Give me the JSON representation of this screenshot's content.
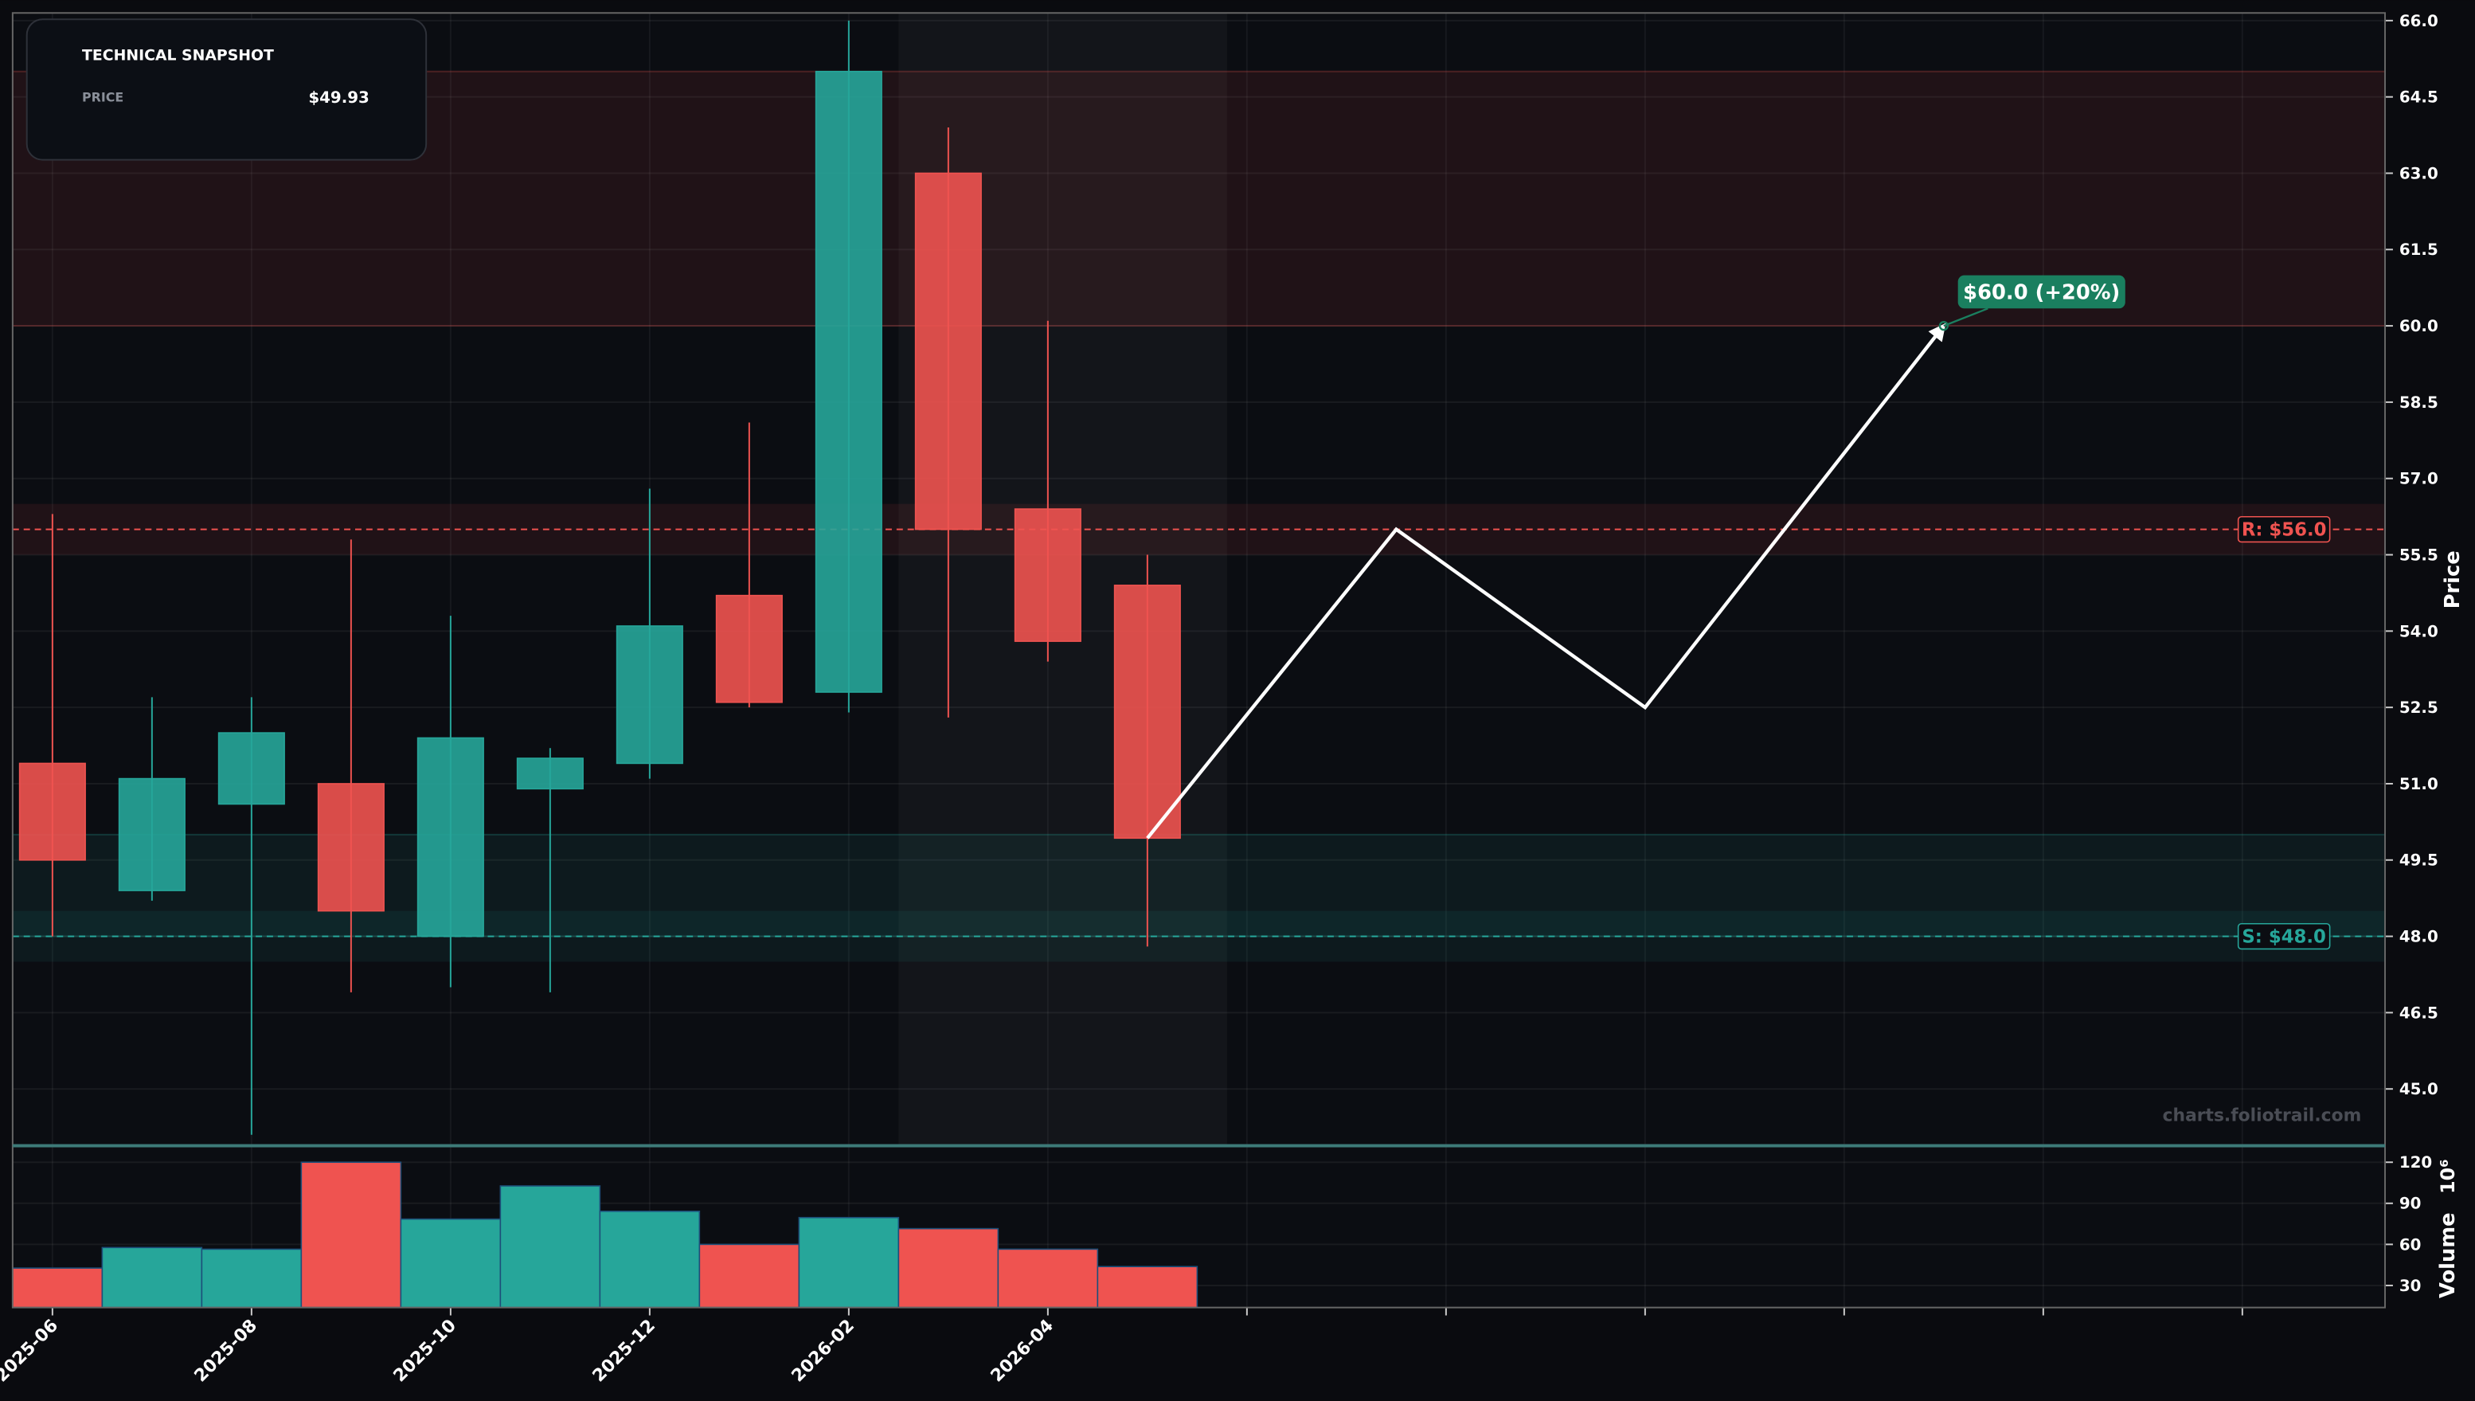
{
  "snapshot": {
    "title": "TECHNICAL SNAPSHOT",
    "price_label": "PRICE",
    "price": "$49.93"
  },
  "chart_data": [
    {
      "type": "candlestick",
      "y_label": "Price",
      "x": [
        "2025-06",
        "2025-07",
        "2025-08",
        "2025-09",
        "2025-10",
        "2025-11",
        "2025-12",
        "2026-01",
        "2026-02",
        "2026-03",
        "2026-04",
        "2026-05"
      ],
      "open": [
        51.4,
        48.9,
        50.6,
        51.0,
        48.0,
        50.9,
        51.4,
        54.7,
        52.8,
        63.0,
        56.4,
        54.9
      ],
      "high": [
        56.3,
        52.7,
        52.7,
        55.8,
        54.3,
        51.7,
        56.8,
        58.1,
        66.0,
        63.9,
        60.1,
        55.5
      ],
      "low": [
        48.0,
        48.7,
        44.1,
        46.9,
        47.0,
        46.9,
        51.1,
        52.5,
        52.4,
        52.3,
        53.4,
        47.8
      ],
      "close": [
        49.5,
        51.1,
        52.0,
        48.5,
        51.9,
        51.5,
        54.1,
        52.6,
        65.0,
        56.0,
        53.8,
        49.93
      ],
      "up_color": "#26a69a",
      "down_color": "#ef5350",
      "xlim": [
        "2025-05-19",
        "2027-05-14"
      ],
      "xticks": [
        "2025-06",
        "2025-08",
        "2025-10",
        "2025-12",
        "2026-02",
        "2026-04",
        {
          "value": "2026-06",
          "label": null
        },
        {
          "value": "2026-08",
          "label": null
        },
        {
          "value": "2026-10",
          "label": null
        },
        {
          "value": "2026-12",
          "label": null
        },
        {
          "value": "2027-02",
          "label": null
        },
        {
          "value": "2027-04",
          "label": null
        }
      ],
      "ylim": [
        43.9,
        66.15
      ],
      "yticks": [
        {
          "value": 45,
          "label": "45.0"
        },
        46.5,
        {
          "value": 48,
          "label": "48.0"
        },
        49.5,
        {
          "value": 51,
          "label": "51.0"
        },
        52.5,
        {
          "value": 54,
          "label": "54.0"
        },
        55.5,
        {
          "value": 57,
          "label": "57.0"
        },
        58.5,
        {
          "value": 60,
          "label": "60.0"
        },
        61.5,
        {
          "value": 63,
          "label": "63.0"
        },
        64.5,
        {
          "value": 66,
          "label": "66.0"
        }
      ],
      "grid": true,
      "zones": [
        {
          "from": 60,
          "to": 65,
          "color": "#ef5350"
        },
        {
          "from": 48,
          "to": 50,
          "color": "#26a69a"
        }
      ],
      "levels": [
        {
          "value": 56,
          "label": "R: $56.0",
          "color": "#ef5350",
          "band": 0.5
        },
        {
          "value": 48,
          "label": "S: $48.0",
          "color": "#26a69a",
          "band": 0.5
        }
      ],
      "highlight": [
        "2026-02-16",
        "2026-05-25"
      ],
      "projection": {
        "x": [
          "2026-05",
          "2026-07-16",
          "2026-10",
          "2027-01"
        ],
        "values": [
          49.93,
          56.0,
          52.5,
          60.0
        ],
        "color": "#ffffff"
      },
      "target_label": "$60.0 (+20%)",
      "target_color": "#1a7f5f",
      "watermark": "charts.foliotrail.com"
    },
    {
      "type": "bar",
      "y_label": "Volume",
      "y_scale_label": "10⁶",
      "x": [
        "2025-06",
        "2025-07",
        "2025-08",
        "2025-09",
        "2025-10",
        "2025-11",
        "2025-12",
        "2026-01",
        "2026-02",
        "2026-03",
        "2026-04",
        "2026-05"
      ],
      "values": [
        42.7,
        57.7,
        56.5,
        120,
        78.5,
        102.7,
        84.2,
        60,
        79.6,
        71.5,
        56.5,
        43.8
      ],
      "colors": [
        "#ef5350",
        "#26a69a",
        "#26a69a",
        "#ef5350",
        "#26a69a",
        "#26a69a",
        "#26a69a",
        "#ef5350",
        "#26a69a",
        "#ef5350",
        "#ef5350",
        "#ef5350"
      ],
      "ylim": [
        13.9,
        131.5
      ],
      "yticks": [
        30,
        60,
        90,
        120
      ],
      "grid": true
    }
  ]
}
